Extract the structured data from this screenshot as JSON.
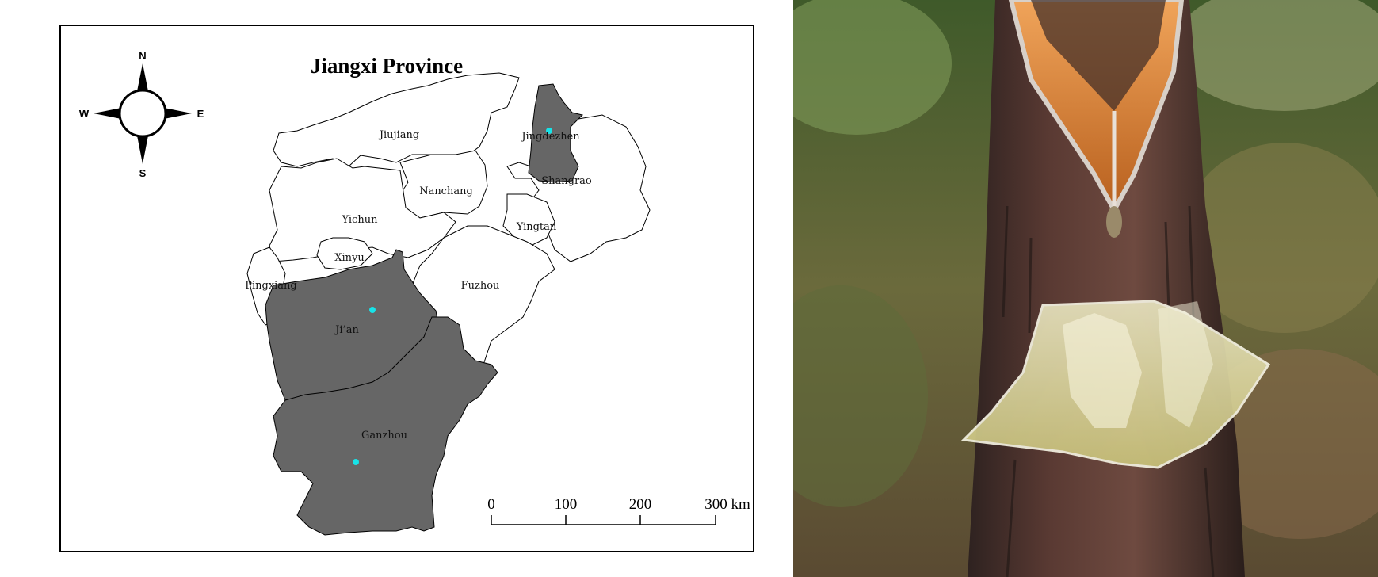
{
  "map": {
    "title": "Jiangxi Province",
    "compass": {
      "north": "N",
      "south": "S",
      "east": "E",
      "west": "W"
    },
    "cities": {
      "jiujiang": "Jiujiang",
      "jingdezhen": "Jingdezhen",
      "shangrao": "Shangrao",
      "nanchang": "Nanchang",
      "yichun": "Yichun",
      "yingtan": "Yingtan",
      "xinyu": "Xinyu",
      "pingxiang": "Pingxiang",
      "fuzhou": "Fuzhou",
      "jian": "Ji’an",
      "ganzhou": "Ganzhou"
    },
    "highlighted_regions": [
      "Jingdezhen",
      "Ji’an",
      "Ganzhou"
    ],
    "sample_point_color": "#17e3e8",
    "highlight_color": "#666666",
    "scale_bar": {
      "ticks": [
        "0",
        "100",
        "200",
        "300 km"
      ]
    }
  },
  "photo": {
    "subject": "pine-tree-resin-tapping-with-collection-bag"
  }
}
